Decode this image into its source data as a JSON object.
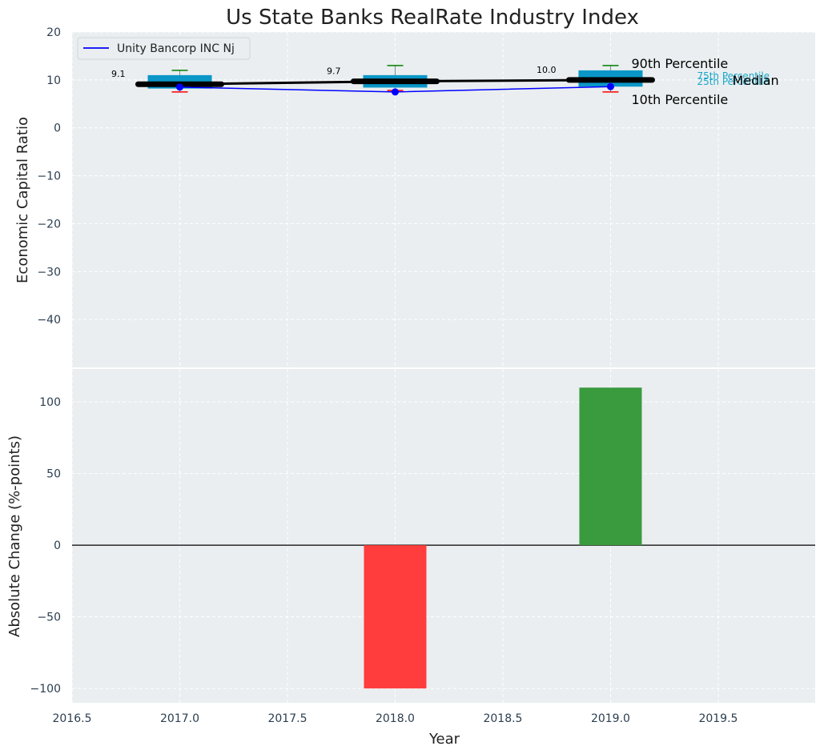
{
  "chart_data": [
    {
      "type": "box",
      "title": "Us State Banks RealRate Industry Index",
      "xlabel": "",
      "ylabel": "Economic Capital Ratio",
      "xlim": [
        2016.5,
        2019.95
      ],
      "ylim": [
        -50,
        20
      ],
      "yticks": [
        20,
        10,
        0,
        -10,
        -20,
        -30,
        -40
      ],
      "grid": true,
      "legend": {
        "position": "top-left",
        "entries": [
          "Unity Bancorp INC Nj"
        ]
      },
      "boxes": [
        {
          "x": 2017,
          "p10": 7.5,
          "p25": 8.2,
          "median": 9.1,
          "p75": 11.0,
          "p90": 12.0,
          "median_label": "9.1"
        },
        {
          "x": 2018,
          "p10": 7.8,
          "p25": 8.4,
          "median": 9.7,
          "p75": 11.0,
          "p90": 13.0,
          "median_label": "9.7"
        },
        {
          "x": 2019,
          "p10": 7.5,
          "p25": 8.6,
          "median": 10.0,
          "p75": 12.0,
          "p90": 13.0,
          "median_label": "10.0"
        }
      ],
      "series": [
        {
          "name": "Unity Bancorp INC Nj",
          "x": [
            2017,
            2018,
            2019
          ],
          "values": [
            8.5,
            7.5,
            8.6
          ],
          "color": "#0000ff"
        }
      ],
      "annotations": {
        "p90": "90th Percentile",
        "p75": "75th Percentile",
        "median": "Median",
        "p25": "25th Percentile",
        "p10": "10th Percentile"
      }
    },
    {
      "type": "bar",
      "xlabel": "Year",
      "ylabel": "Absolute Change (%-points)",
      "xlim": [
        2016.5,
        2019.95
      ],
      "ylim": [
        -110,
        123
      ],
      "xticks": [
        "2016.5",
        "2017.0",
        "2017.5",
        "2018.0",
        "2018.5",
        "2019.0",
        "2019.5"
      ],
      "yticks": [
        100,
        50,
        0,
        -50,
        -100
      ],
      "grid": true,
      "bars": [
        {
          "x": 2018,
          "value": -100,
          "color": "#ff3d3d"
        },
        {
          "x": 2019,
          "value": 110,
          "color": "#3a9a3e"
        }
      ]
    }
  ],
  "colors": {
    "plot_bg": "#eaeef0",
    "box_fill": "#0a97c7",
    "whisker_top": "#008000",
    "whisker_bottom": "#ff0000",
    "median_line": "#000000",
    "company_line": "#0000ff"
  }
}
